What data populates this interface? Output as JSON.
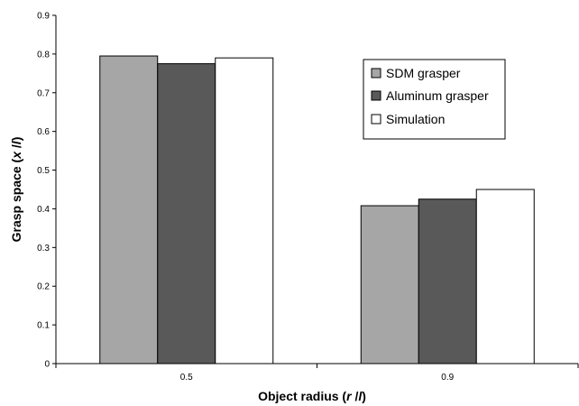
{
  "chart_data": {
    "type": "bar",
    "categories": [
      "0.5",
      "0.9"
    ],
    "series": [
      {
        "name": "SDM grasper",
        "values": [
          0.795,
          0.408
        ],
        "color": "#a6a6a6"
      },
      {
        "name": "Aluminum grasper",
        "values": [
          0.775,
          0.425
        ],
        "color": "#595959"
      },
      {
        "name": "Simulation",
        "values": [
          0.79,
          0.45
        ],
        "color": "#ffffff"
      }
    ],
    "xlabel_parts": [
      "Object radius (",
      "r",
      " /",
      "l",
      ")"
    ],
    "ylabel_parts": [
      "Grasp space (",
      "x",
      " /",
      "l",
      ")"
    ],
    "ylim": [
      0,
      0.9
    ],
    "yticks": [
      0,
      0.1,
      0.2,
      0.3,
      0.4,
      0.5,
      0.6,
      0.7,
      0.8,
      0.9
    ],
    "ytick_labels": [
      "0",
      "0.1",
      "0.2",
      "0.3",
      "0.4",
      "0.5",
      "0.6",
      "0.7",
      "0.8",
      "0.9"
    ],
    "grid": false,
    "legend_position": "top-right"
  }
}
